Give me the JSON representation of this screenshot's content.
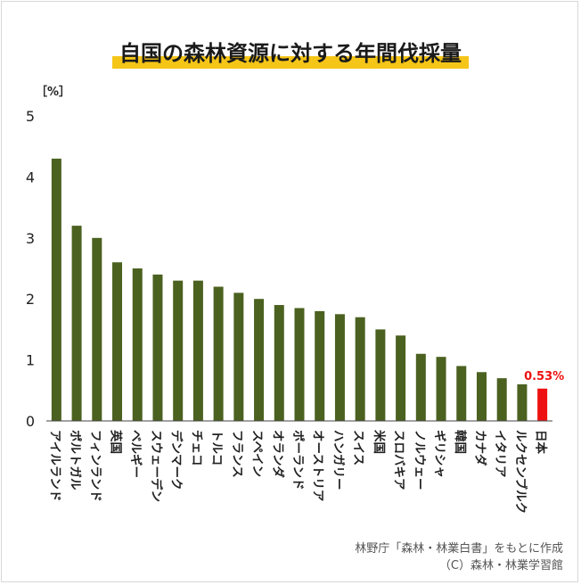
{
  "title": "自国の森林資源に対する年間伐採量",
  "unit_label": "［%］",
  "source_line1": "林野庁「森林・林業白書」をもとに作成",
  "source_line2": "（C）森林・林業学習館",
  "colors": {
    "bar": "#4b6120",
    "highlight": "#ee1111",
    "accent": "#f5c518"
  },
  "chart_data": {
    "type": "bar",
    "title": "自国の森林資源に対する年間伐採量",
    "ylabel": "［%］",
    "xlabel": "",
    "ylim": [
      0,
      5
    ],
    "yticks": [
      0,
      1,
      2,
      3,
      4,
      5
    ],
    "grid": false,
    "categories": [
      "アイルランド",
      "ポルトガル",
      "フィンランド",
      "英国",
      "ベルギー",
      "スウェーデン",
      "デンマーク",
      "チェコ",
      "トルコ",
      "フランス",
      "スペイン",
      "オランダ",
      "ポーランド",
      "オーストリア",
      "ハンガリー",
      "スイス",
      "米国",
      "スロバキア",
      "ノルウェー",
      "ギリシャ",
      "韓国",
      "カナダ",
      "イタリア",
      "ルクセンブルク",
      "日本"
    ],
    "values": [
      4.3,
      3.2,
      3.0,
      2.6,
      2.5,
      2.4,
      2.3,
      2.3,
      2.2,
      2.1,
      2.0,
      1.9,
      1.85,
      1.8,
      1.75,
      1.7,
      1.5,
      1.4,
      1.1,
      1.05,
      0.9,
      0.8,
      0.7,
      0.6,
      0.53
    ],
    "highlight_index": 24,
    "annotation": {
      "text": "0.53%",
      "category": "日本"
    }
  }
}
